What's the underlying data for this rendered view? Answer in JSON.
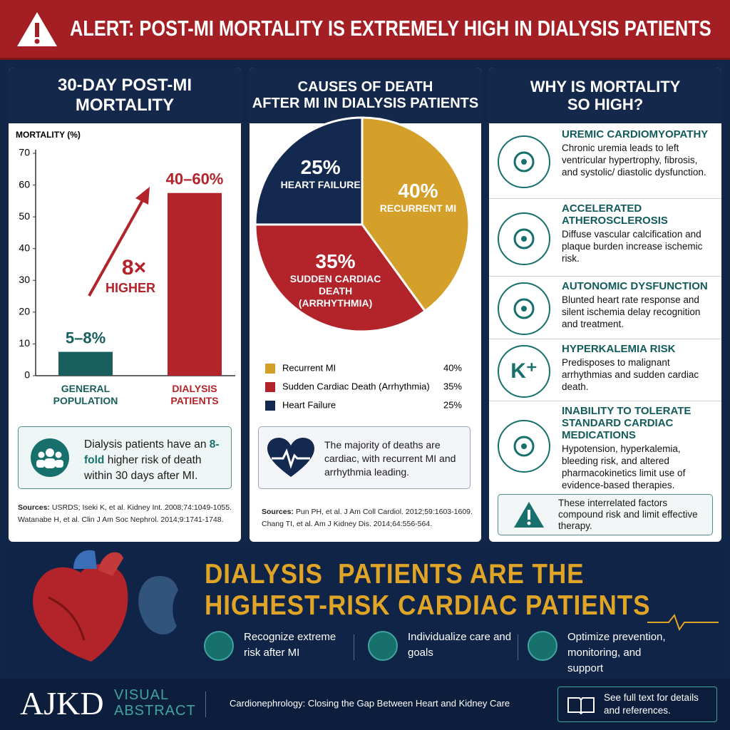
{
  "header": {
    "title": "ALERT: POST-MI MORTALITY IS EXTREMELY HIGH IN DIALYSIS PATIENTS"
  },
  "chart_data": [
    {
      "type": "bar",
      "title": [
        "30-DAY POST-MI",
        "MORTALITY"
      ],
      "y_label": "MORTALITY (%)",
      "categories": [
        "GENERAL POPULATION",
        "DIALYSIS PATIENTS"
      ],
      "values": [
        7.5,
        57.5
      ],
      "value_labels": [
        "5–8%",
        "40–60%"
      ],
      "colors": [
        "#175e5c",
        "#b3232a"
      ],
      "ylim": [
        0,
        70
      ],
      "yticks": [
        0,
        10,
        20,
        30,
        40,
        50,
        60,
        70
      ],
      "annotation": {
        "multiplier": "8×",
        "text": "HIGHER"
      }
    },
    {
      "type": "pie",
      "title": [
        "CAUSES OF DEATH",
        "AFTER MI IN DIALYSIS PATIENTS"
      ],
      "categories": [
        "Recurrent MI",
        "Sudden Cardiac Death (Arrhythmia)",
        "Heart Failure"
      ],
      "values": [
        40,
        35,
        25
      ],
      "value_labels": [
        "40%",
        "35%",
        "25%"
      ],
      "colors": [
        "#d4a02a",
        "#b3232a",
        "#13294f"
      ]
    }
  ],
  "left_panel": {
    "note": [
      "Dialysis patients have an ",
      "8-fold",
      " higher risk of death within 30 days after MI."
    ],
    "sources_label": "Sources:",
    "sources": [
      "USRDS; Iseki K, et al. Kidney Int. 2008;74:1049-1055.",
      "Watanabe H, et al. Clin J Am Soc Nephrol. 2014;9:1741-1748."
    ]
  },
  "middle_panel": {
    "note": "The majority of deaths are cardiac, with recurrent MI and arrhythmia leading.",
    "sources_label": "Sources:",
    "sources": [
      "Pun PH, et al. J Am Coll Cardiol. 2012;59:1603-1609.",
      "Chang TI, et al. Am J Kidney Dis. 2014;64:556-564."
    ]
  },
  "right_panel": {
    "title": [
      "WHY IS MORTALITY",
      "SO HIGH?"
    ],
    "items": [
      {
        "title": "UREMIC CARDIOMYOPATHY",
        "body": "Chronic uremia leads to left ventricular hypertrophy, fibrosis, and systolic/ diastolic dysfunction."
      },
      {
        "title": "ACCELERATED ATHEROSCLEROSIS",
        "body": "Diffuse vascular calcification and plaque burden increase ischemic risk."
      },
      {
        "title": "AUTONOMIC DYSFUNCTION",
        "body": "Blunted heart rate response and silent ischemia delay recognition and treatment."
      },
      {
        "title": "HYPERKALEMIA RISK",
        "body": "Predisposes to malignant arrhythmias and sudden cardiac death.",
        "icon_text": "K⁺"
      },
      {
        "title": "INABILITY TO TOLERATE STANDARD CARDIAC MEDICATIONS",
        "body": "Hypotension, hyperkalemia, bleeding risk, and altered pharmacokinetics limit use of evidence-based therapies."
      }
    ],
    "note": "These interrelated factors compound risk and limit effective therapy."
  },
  "banner": {
    "headline": [
      "DIALYSIS  PATIENTS ARE THE",
      "HIGHEST-RISK CARDIAC PATIENTS"
    ],
    "actions": [
      "Recognize extreme risk after MI",
      "Individualize care and goals",
      "Optimize prevention, monitoring, and support"
    ]
  },
  "footer": {
    "logo": "AJKD",
    "visual": "VISUAL",
    "abstract": "ABSTRACT",
    "tagline": "Cardionephrology: Closing the Gap Between Heart and Kidney Care",
    "link": "See full text for details and references."
  }
}
